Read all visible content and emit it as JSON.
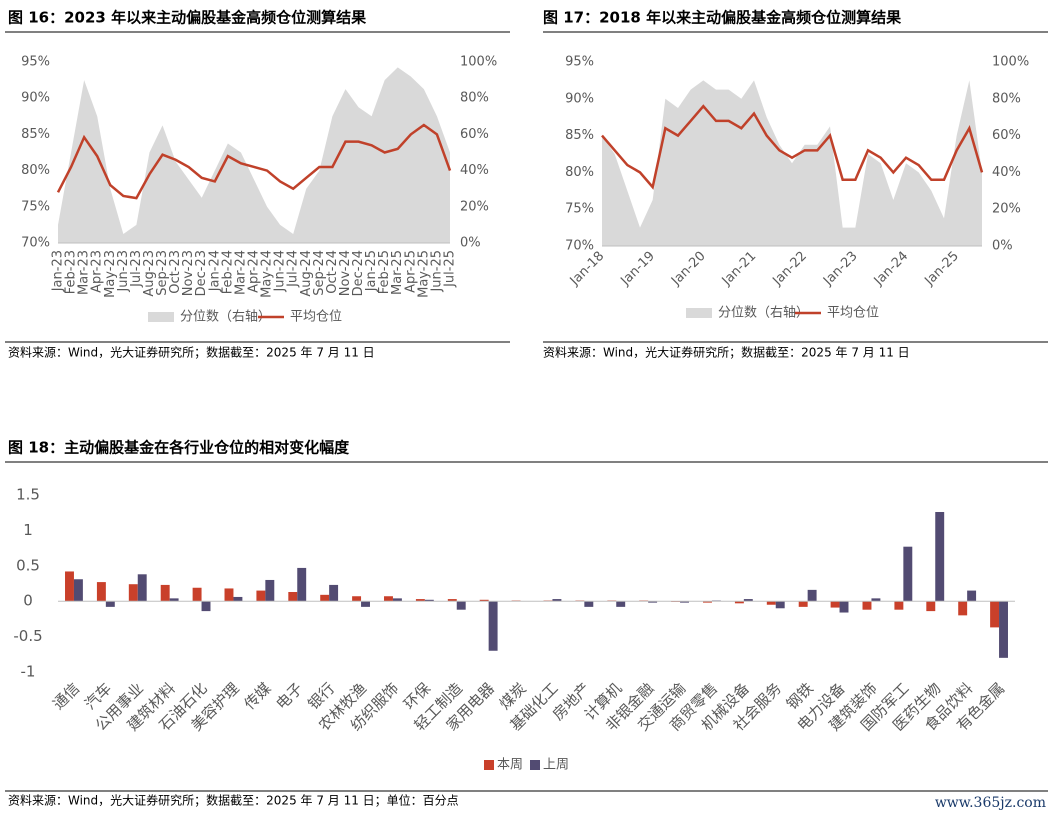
{
  "chart_data": [
    {
      "type": "line",
      "title": "图 16：2023 年以来主动偏股基金高频仓位测算结果",
      "categories": [
        "Jan-23",
        "Feb-23",
        "Mar-23",
        "Apr-23",
        "May-23",
        "Jun-23",
        "Jul-23",
        "Aug-23",
        "Sep-23",
        "Oct-23",
        "Nov-23",
        "Dec-23",
        "Jan-24",
        "Feb-24",
        "Mar-24",
        "Apr-24",
        "May-24",
        "Jun-24",
        "Jul-24",
        "Aug-24",
        "Sep-24",
        "Oct-24",
        "Nov-24",
        "Dec-24",
        "Jan-25",
        "Feb-25",
        "Mar-25",
        "Apr-25",
        "May-25",
        "Jun-25",
        "Jul-25"
      ],
      "series": [
        {
          "name": "分位数（右轴）",
          "kind": "area",
          "axis": "y2",
          "color": "#d9d9d9",
          "values": [
            10,
            50,
            90,
            70,
            30,
            5,
            10,
            50,
            65,
            45,
            35,
            25,
            40,
            55,
            50,
            35,
            20,
            10,
            5,
            30,
            40,
            70,
            85,
            75,
            70,
            90,
            97,
            92,
            85,
            70,
            50
          ]
        },
        {
          "name": "平均仓位",
          "kind": "line",
          "color": "#c0412a",
          "values": [
            77,
            80.5,
            84.6,
            82,
            78,
            76.5,
            76.2,
            79.5,
            82.2,
            81.5,
            80.5,
            79,
            78.5,
            82,
            81,
            80.5,
            80,
            78.5,
            77.5,
            79,
            80.5,
            80.5,
            84,
            84,
            83.5,
            82.5,
            83,
            85,
            86.3,
            85,
            80
          ]
        }
      ],
      "ylim": [
        70,
        95
      ],
      "yticks": [
        {
          "value": 70,
          "label": "70%"
        },
        {
          "value": 75,
          "label": "75%"
        },
        {
          "value": 80,
          "label": "80%"
        },
        {
          "value": 85,
          "label": "85%"
        },
        {
          "value": 90,
          "label": "90%"
        },
        {
          "value": 95,
          "label": "95%"
        }
      ],
      "y2lim": [
        0,
        100
      ],
      "y2ticks": [
        {
          "value": 0,
          "label": "0%"
        },
        {
          "value": 20,
          "label": "20%"
        },
        {
          "value": 40,
          "label": "40%"
        },
        {
          "value": 60,
          "label": "60%"
        },
        {
          "value": 80,
          "label": "80%"
        },
        {
          "value": 100,
          "label": "100%"
        }
      ],
      "source": "资料来源：Wind，光大证券研究所；数据截至：2025 年 7 月 11 日"
    },
    {
      "type": "line",
      "title": "图 17：2018 年以来主动偏股基金高频仓位测算结果",
      "categories": [
        "Jan-18",
        null,
        null,
        null,
        "Jan-19",
        null,
        null,
        null,
        "Jan-20",
        null,
        null,
        null,
        "Jan-21",
        null,
        null,
        null,
        "Jan-22",
        null,
        null,
        null,
        "Jan-23",
        null,
        null,
        null,
        "Jan-24",
        null,
        null,
        null,
        "Jan-25",
        null,
        null
      ],
      "series": [
        {
          "name": "分位数（右轴）",
          "kind": "area",
          "axis": "y2",
          "color": "#d9d9d9",
          "values": [
            60,
            50,
            30,
            10,
            25,
            80,
            75,
            85,
            90,
            85,
            85,
            80,
            90,
            70,
            55,
            45,
            55,
            55,
            65,
            10,
            10,
            50,
            45,
            25,
            45,
            40,
            30,
            15,
            60,
            90,
            40
          ]
        },
        {
          "name": "平均仓位",
          "kind": "line",
          "color": "#c0412a",
          "values": [
            85,
            83,
            81,
            80,
            78,
            86,
            85,
            87,
            89,
            87,
            87,
            86,
            88,
            85,
            83,
            82,
            83,
            83,
            85,
            79,
            79,
            83,
            82,
            80,
            82,
            81,
            79,
            79,
            83,
            86,
            80
          ]
        }
      ],
      "ylim": [
        70,
        95
      ],
      "yticks": [
        {
          "value": 70,
          "label": "70%"
        },
        {
          "value": 75,
          "label": "75%"
        },
        {
          "value": 80,
          "label": "80%"
        },
        {
          "value": 85,
          "label": "85%"
        },
        {
          "value": 90,
          "label": "90%"
        },
        {
          "value": 95,
          "label": "95%"
        }
      ],
      "y2lim": [
        0,
        100
      ],
      "y2ticks": [
        {
          "value": 0,
          "label": "0%"
        },
        {
          "value": 20,
          "label": "20%"
        },
        {
          "value": 40,
          "label": "40%"
        },
        {
          "value": 60,
          "label": "60%"
        },
        {
          "value": 80,
          "label": "80%"
        },
        {
          "value": 100,
          "label": "100%"
        }
      ],
      "source": "资料来源：Wind，光大证券研究所；数据截至：2025 年 7 月 11 日"
    },
    {
      "type": "bar",
      "title": "图 18：主动偏股基金在各行业仓位的相对变化幅度",
      "categories": [
        "通信",
        "汽车",
        "公用事业",
        "建筑材料",
        "石油石化",
        "美容护理",
        "传媒",
        "电子",
        "银行",
        "农林牧渔",
        "纺织服饰",
        "环保",
        "轻工制造",
        "家用电器",
        "煤炭",
        "基础化工",
        "房地产",
        "计算机",
        "非银金融",
        "交通运输",
        "商贸零售",
        "机械设备",
        "社会服务",
        "钢铁",
        "电力设备",
        "建筑装饰",
        "国防军工",
        "医药生物",
        "食品饮料",
        "有色金属"
      ],
      "series": [
        {
          "name": "本周",
          "color": "#c9402a",
          "values": [
            0.42,
            0.27,
            0.24,
            0.23,
            0.19,
            0.18,
            0.15,
            0.13,
            0.09,
            0.07,
            0.07,
            0.03,
            0.03,
            0.02,
            0.01,
            0.01,
            0.01,
            0.01,
            0.01,
            -0.01,
            -0.02,
            -0.03,
            -0.05,
            -0.08,
            -0.09,
            -0.12,
            -0.12,
            -0.14,
            -0.2,
            -0.37
          ]
        },
        {
          "name": "上周",
          "color": "#524b72",
          "values": [
            0.31,
            -0.08,
            0.38,
            0.04,
            -0.14,
            0.06,
            0.3,
            0.47,
            0.23,
            -0.08,
            0.04,
            0.02,
            -0.12,
            -0.7,
            0,
            0.03,
            -0.08,
            -0.08,
            -0.02,
            -0.02,
            0.01,
            0.03,
            -0.1,
            0.16,
            -0.16,
            0.04,
            0.77,
            1.26,
            0.15,
            -0.8
          ]
        }
      ],
      "ylim": [
        -1,
        1.5
      ],
      "yticks": [
        -1,
        -0.5,
        0,
        0.5,
        1,
        1.5
      ],
      "source": "资料来源：Wind，光大证券研究所；数据截至：2025 年 7 月 11 日；单位：百分点"
    }
  ],
  "watermark": "www.365jz.com"
}
